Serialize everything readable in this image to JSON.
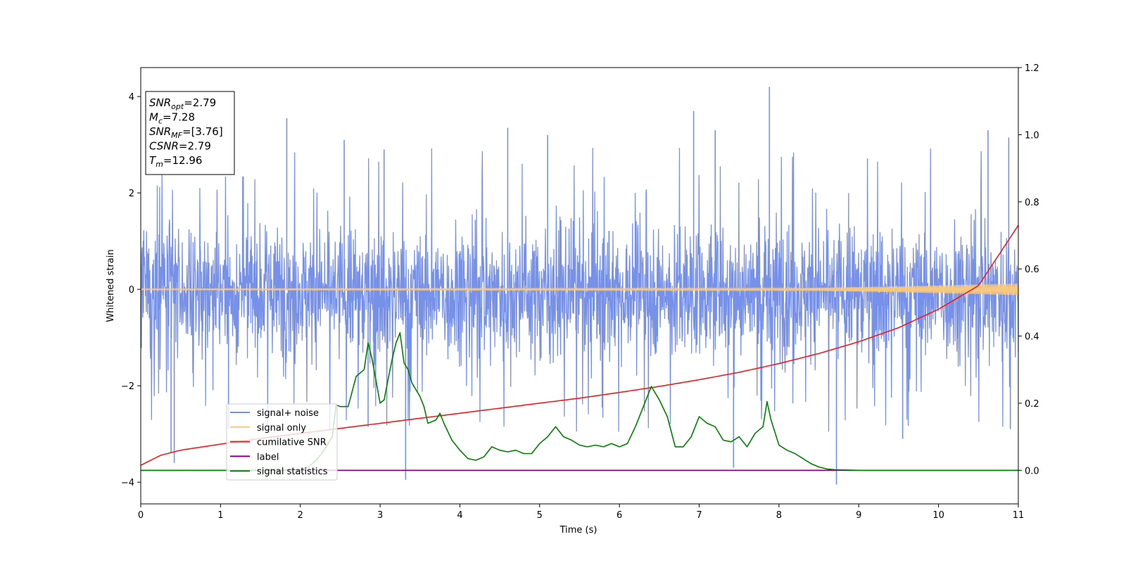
{
  "chart_data": {
    "type": "line",
    "title": "",
    "xlabel": "Time (s)",
    "ylabel": "Whitened strain",
    "xlim": [
      0,
      11
    ],
    "ylim": [
      -4.45,
      4.6
    ],
    "y2lim": [
      -0.1,
      1.2
    ],
    "x_ticks": [
      "0",
      "1",
      "2",
      "3",
      "4",
      "5",
      "6",
      "7",
      "8",
      "9",
      "10",
      "11"
    ],
    "y_ticks": [
      "4",
      "2",
      "0",
      "−2",
      "−4"
    ],
    "y2_ticks": [
      "1.2",
      "1.0",
      "0.8",
      "0.6",
      "0.4",
      "0.2",
      "0.0"
    ],
    "grid": false,
    "legend_position": "lower-left",
    "annotation": [
      {
        "sym": "SNR",
        "sub": "opt",
        "value": "=2.79"
      },
      {
        "sym": "M",
        "sub": "c",
        "value": "=7.28"
      },
      {
        "sym": "SNR",
        "sub": "MF",
        "value": "=[3.76]"
      },
      {
        "sym": "CSNR",
        "sub": "",
        "value": "=2.79"
      },
      {
        "sym": "T",
        "sub": "m",
        "value": "=12.96"
      }
    ],
    "series": [
      {
        "name": "signal+ noise",
        "color": "#7891e8",
        "axis": "left",
        "envelope_upper": [
          [
            0,
            1.5
          ],
          [
            1,
            1.5
          ],
          [
            2,
            1.5
          ],
          [
            3,
            1.4
          ],
          [
            4,
            1.5
          ],
          [
            5,
            1.5
          ],
          [
            6,
            1.5
          ],
          [
            7,
            1.5
          ],
          [
            8,
            1.5
          ],
          [
            9,
            1.5
          ],
          [
            10,
            1.5
          ],
          [
            11,
            1.5
          ]
        ],
        "envelope_lower": [
          [
            0,
            -1.6
          ],
          [
            1,
            -1.6
          ],
          [
            2,
            -1.6
          ],
          [
            3,
            -1.6
          ],
          [
            4,
            -1.6
          ],
          [
            5,
            -1.6
          ],
          [
            6,
            -1.6
          ],
          [
            7,
            -1.6
          ],
          [
            8,
            -1.6
          ],
          [
            9,
            -1.6
          ],
          [
            10,
            -1.6
          ],
          [
            11,
            -1.6
          ]
        ],
        "spikes": [
          [
            0.38,
            -3.4
          ],
          [
            0.42,
            -3.6
          ],
          [
            1.83,
            3.55
          ],
          [
            2.85,
            -2.85
          ],
          [
            3.32,
            -3.95
          ],
          [
            4.6,
            3.35
          ],
          [
            6.93,
            3.7
          ],
          [
            7.2,
            3.3
          ],
          [
            7.43,
            -3.7
          ],
          [
            7.88,
            4.2
          ],
          [
            8.72,
            -4.05
          ],
          [
            9.55,
            -3.1
          ],
          [
            10.62,
            3.3
          ],
          [
            10.88,
            3.15
          ],
          [
            10.9,
            -2.9
          ],
          [
            2.55,
            3.1
          ],
          [
            5.1,
            3.2
          ],
          [
            3.05,
            2.9
          ],
          [
            1.1,
            -2.9
          ]
        ]
      },
      {
        "name": "signal only",
        "color": "#f7c97f",
        "axis": "left",
        "amplitude": [
          [
            0,
            0.01
          ],
          [
            8,
            0.02
          ],
          [
            9.5,
            0.06
          ],
          [
            11,
            0.12
          ]
        ]
      },
      {
        "name": "cumilative SNR",
        "color": "#ee1c1c",
        "axis": "right",
        "x": [
          0,
          0.25,
          0.5,
          1,
          1.5,
          2,
          2.5,
          3,
          3.5,
          4,
          4.5,
          5,
          5.5,
          6,
          6.5,
          7,
          7.5,
          8,
          8.5,
          9,
          9.5,
          10,
          10.5,
          11
        ],
        "y": [
          0.015,
          0.045,
          0.06,
          0.078,
          0.095,
          0.11,
          0.125,
          0.14,
          0.155,
          0.17,
          0.185,
          0.2,
          0.215,
          0.232,
          0.25,
          0.27,
          0.292,
          0.318,
          0.348,
          0.383,
          0.425,
          0.48,
          0.55,
          0.73
        ]
      },
      {
        "name": "label",
        "color": "#800080",
        "axis": "right",
        "x": [
          0,
          11
        ],
        "y": [
          0,
          0
        ]
      },
      {
        "name": "signal statistics",
        "color": "#008000",
        "axis": "right",
        "x": [
          0,
          1,
          2,
          2.1,
          2.2,
          2.3,
          2.4,
          2.45,
          2.5,
          2.6,
          2.7,
          2.8,
          2.85,
          2.9,
          3.0,
          3.05,
          3.1,
          3.15,
          3.2,
          3.25,
          3.3,
          3.35,
          3.4,
          3.5,
          3.55,
          3.6,
          3.7,
          3.75,
          3.8,
          3.9,
          4.0,
          4.1,
          4.2,
          4.3,
          4.4,
          4.5,
          4.6,
          4.7,
          4.8,
          4.9,
          5.0,
          5.1,
          5.2,
          5.3,
          5.4,
          5.5,
          5.6,
          5.7,
          5.8,
          5.9,
          6.0,
          6.1,
          6.2,
          6.3,
          6.4,
          6.5,
          6.6,
          6.7,
          6.8,
          6.9,
          7.0,
          7.05,
          7.1,
          7.2,
          7.3,
          7.4,
          7.5,
          7.6,
          7.7,
          7.8,
          7.85,
          7.9,
          8.0,
          8.1,
          8.2,
          8.3,
          8.4,
          8.5,
          8.6,
          8.7,
          9,
          10,
          11
        ],
        "y": [
          0,
          0,
          0.001,
          0.01,
          0.03,
          0.06,
          0.1,
          0.195,
          0.19,
          0.19,
          0.28,
          0.3,
          0.38,
          0.33,
          0.2,
          0.21,
          0.27,
          0.33,
          0.38,
          0.41,
          0.32,
          0.3,
          0.26,
          0.22,
          0.19,
          0.14,
          0.15,
          0.17,
          0.14,
          0.09,
          0.06,
          0.035,
          0.03,
          0.04,
          0.07,
          0.06,
          0.055,
          0.06,
          0.05,
          0.05,
          0.08,
          0.1,
          0.13,
          0.1,
          0.09,
          0.075,
          0.07,
          0.075,
          0.07,
          0.08,
          0.07,
          0.08,
          0.13,
          0.19,
          0.25,
          0.21,
          0.16,
          0.07,
          0.07,
          0.1,
          0.16,
          0.15,
          0.14,
          0.13,
          0.09,
          0.085,
          0.1,
          0.07,
          0.11,
          0.13,
          0.205,
          0.15,
          0.075,
          0.06,
          0.05,
          0.035,
          0.02,
          0.01,
          0.004,
          0.002,
          0,
          0,
          0
        ]
      }
    ]
  }
}
